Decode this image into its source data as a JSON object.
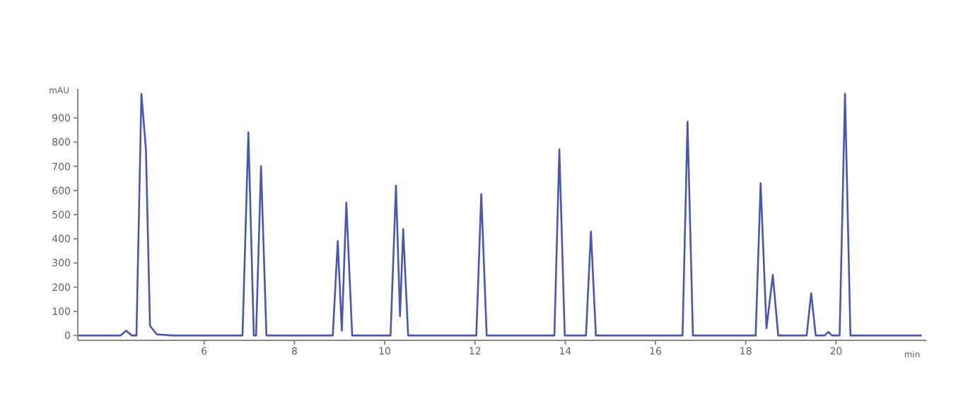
{
  "chart_data": {
    "type": "line",
    "xlabel": "min",
    "ylabel": "mAU",
    "xlim": [
      3.2,
      22
    ],
    "xticks": [
      6,
      8,
      10,
      12,
      14,
      16,
      18,
      20
    ],
    "ylim": [
      -20,
      1020
    ],
    "yticks": [
      0,
      100,
      200,
      300,
      400,
      500,
      600,
      700,
      800,
      900
    ],
    "grid": false,
    "legend": false,
    "marker": "none",
    "line_style": "solid",
    "x": [
      3.2,
      4.15,
      4.27,
      4.4,
      4.5,
      4.61,
      4.71,
      4.8,
      4.95,
      5.3,
      6.85,
      6.98,
      7.1,
      7.15,
      7.26,
      7.38,
      8.85,
      8.96,
      9.05,
      9.15,
      9.28,
      10.13,
      10.25,
      10.34,
      10.41,
      10.52,
      12.03,
      12.14,
      12.26,
      13.76,
      13.87,
      13.99,
      14.46,
      14.57,
      14.68,
      16.6,
      16.71,
      16.83,
      18.22,
      18.33,
      18.46,
      18.6,
      18.72,
      19.35,
      19.45,
      19.55,
      19.75,
      19.83,
      19.91,
      20.08,
      20.2,
      20.32,
      21.9
    ],
    "series": [
      {
        "color": "#4a56b4",
        "values": [
          0,
          0,
          20,
          0,
          0,
          1000,
          770,
          40,
          5,
          0,
          0,
          840,
          0,
          0,
          700,
          0,
          0,
          390,
          20,
          550,
          0,
          0,
          620,
          80,
          440,
          0,
          0,
          585,
          0,
          0,
          770,
          0,
          0,
          430,
          0,
          0,
          885,
          0,
          0,
          630,
          30,
          250,
          0,
          0,
          175,
          0,
          0,
          15,
          0,
          0,
          1000,
          0,
          0
        ]
      }
    ]
  }
}
